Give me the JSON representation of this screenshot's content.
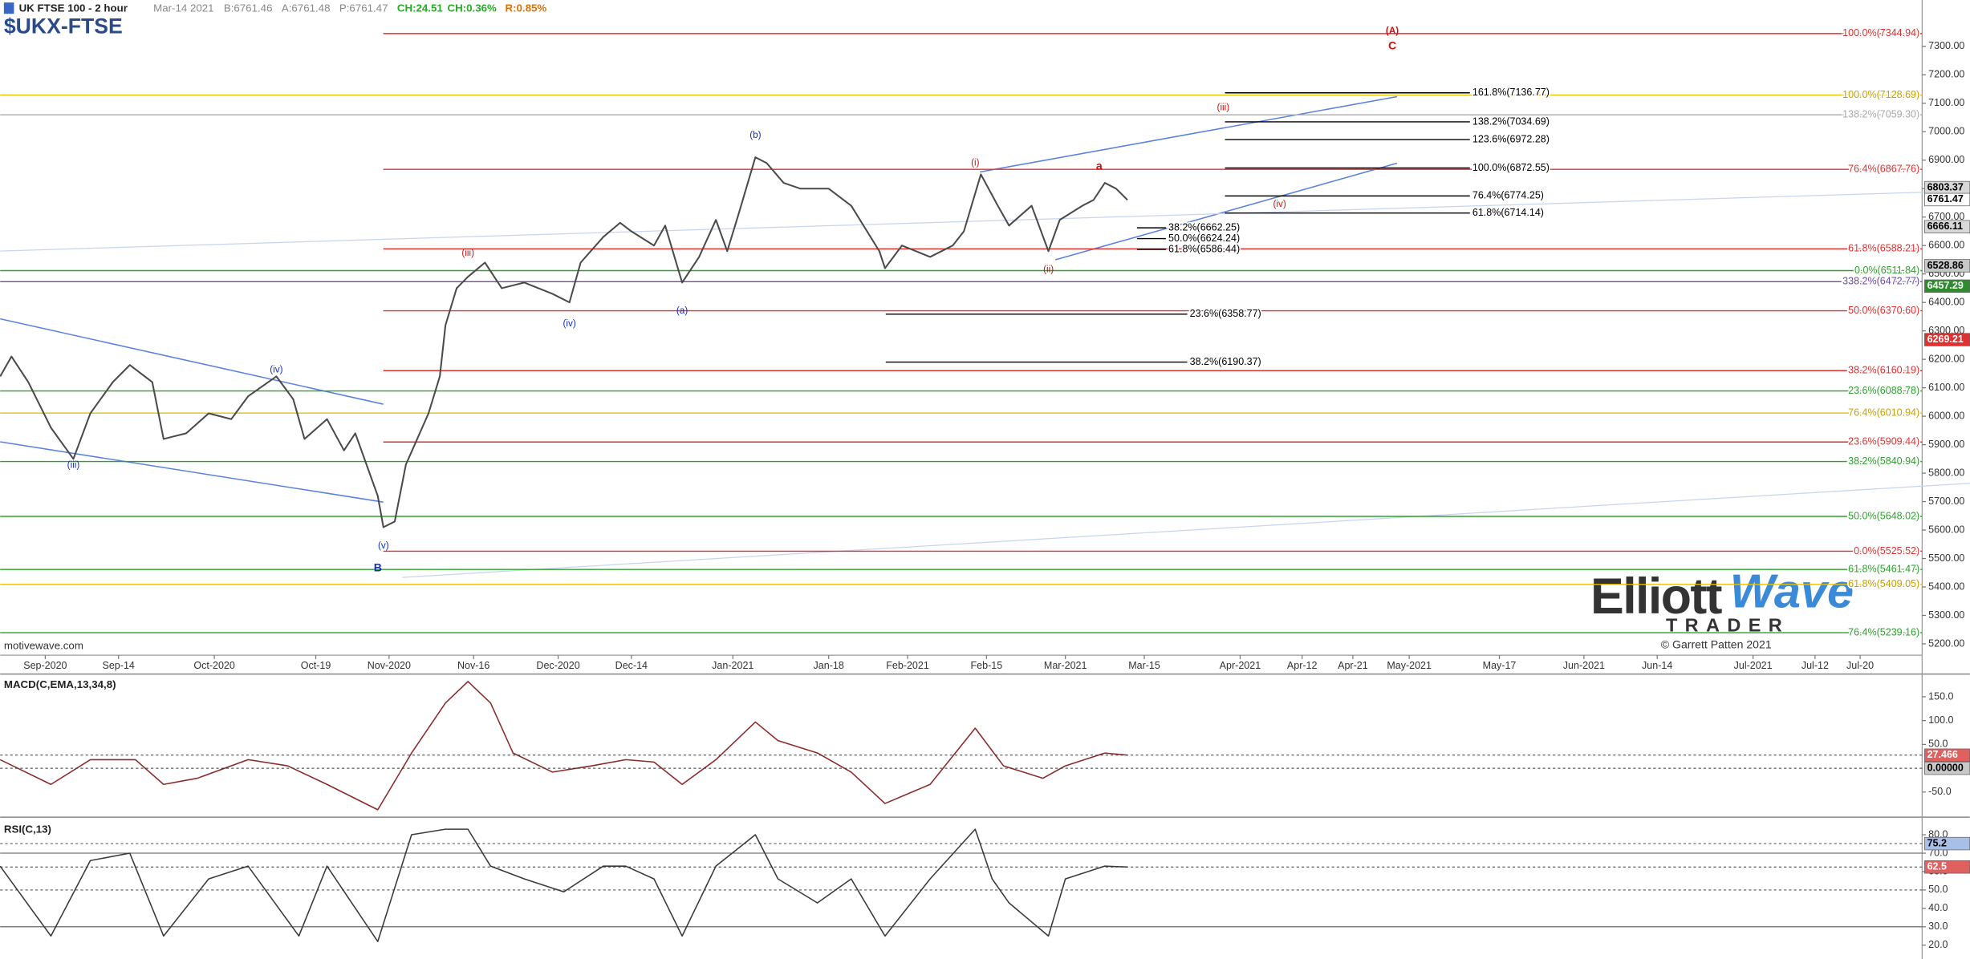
{
  "header": {
    "symbol_line": "UK FTSE 100 - 2 hour",
    "date": "Mar-14 2021",
    "bid": "B:6761.46",
    "ask": "A:6761.48",
    "price": "P:6761.47",
    "change": "CH:24.51",
    "change_pct": "CH:0.36%",
    "range": "R:0.85%",
    "ticker": "$UKX-FTSE",
    "source": "motivewave.com",
    "logo_word1": "Elliott",
    "logo_word2": "Wave",
    "logo_bottom": "TRADER",
    "credit": "© Garrett Patten 2021"
  },
  "chart_data": [
    {
      "type": "line",
      "xlim": [
        -8,
        333
      ],
      "ylim": [
        5160,
        7410
      ],
      "xticks": [
        {
          "value": 0,
          "label": "Sep-2020"
        },
        {
          "value": 13,
          "label": "Sep-14"
        },
        {
          "value": 30,
          "label": "Oct-2020"
        },
        {
          "value": 48,
          "label": "Oct-19"
        },
        {
          "value": 61,
          "label": "Nov-2020"
        },
        {
          "value": 76,
          "label": "Nov-16"
        },
        {
          "value": 91,
          "label": "Dec-2020"
        },
        {
          "value": 104,
          "label": "Dec-14"
        },
        {
          "value": 122,
          "label": "Jan-2021"
        },
        {
          "value": 139,
          "label": "Jan-18"
        },
        {
          "value": 153,
          "label": "Feb-2021"
        },
        {
          "value": 167,
          "label": "Feb-15"
        },
        {
          "value": 181,
          "label": "Mar-2021"
        },
        {
          "value": 195,
          "label": "Mar-15"
        },
        {
          "value": 212,
          "label": "Apr-2021"
        },
        {
          "value": 223,
          "label": "Apr-12"
        },
        {
          "value": 232,
          "label": "Apr-21"
        },
        {
          "value": 242,
          "label": "May-2021"
        },
        {
          "value": 258,
          "label": "May-17"
        },
        {
          "value": 273,
          "label": "Jun-2021"
        },
        {
          "value": 286,
          "label": "Jun-14"
        },
        {
          "value": 303,
          "label": "Jul-2021"
        },
        {
          "value": 314,
          "label": "Jul-12"
        },
        {
          "value": 322,
          "label": "Jul-20"
        }
      ],
      "yticks": [
        {
          "value": 5200,
          "label": "5200.00"
        },
        {
          "value": 5300,
          "label": "5300.00"
        },
        {
          "value": 5400,
          "label": "5400.00"
        },
        {
          "value": 5500,
          "label": "5500.00"
        },
        {
          "value": 5600,
          "label": "5600.00"
        },
        {
          "value": 5700,
          "label": "5700.00"
        },
        {
          "value": 5800,
          "label": "5800.00"
        },
        {
          "value": 5900,
          "label": "5900.00"
        },
        {
          "value": 6000,
          "label": "6000.00"
        },
        {
          "value": 6100,
          "label": "6100.00"
        },
        {
          "value": 6200,
          "label": "6200.00"
        },
        {
          "value": 6300,
          "label": "6300.00"
        },
        {
          "value": 6400,
          "label": "6400.00"
        },
        {
          "value": 6500,
          "label": "6500.00"
        },
        {
          "value": 6600,
          "label": "6600.00"
        },
        {
          "value": 6700,
          "label": "6700.00"
        },
        {
          "value": 6800,
          "label": "6800.00"
        },
        {
          "value": 6900,
          "label": "6900.00"
        },
        {
          "value": 7000,
          "label": "7000.00"
        },
        {
          "value": 7100,
          "label": "7100.00"
        },
        {
          "value": 7200,
          "label": "7200.00"
        },
        {
          "value": 7300,
          "label": "7300.00"
        }
      ],
      "x": [
        -8,
        -6,
        -3,
        1,
        5,
        8,
        12,
        15,
        19,
        21,
        25,
        29,
        33,
        36,
        41,
        44,
        46,
        50,
        53,
        55,
        59,
        60,
        62,
        64,
        68,
        70,
        71,
        73,
        75,
        78,
        81,
        85,
        90,
        93,
        95,
        99,
        102,
        104,
        108,
        110,
        113,
        116,
        119,
        121,
        123,
        126,
        128,
        131,
        134,
        139,
        143,
        148,
        149,
        152,
        157,
        161,
        163,
        166,
        169,
        171,
        175,
        178,
        180,
        184,
        186,
        188,
        190,
        192
      ],
      "series": [
        {
          "color": "#4a4a4a",
          "values": [
            6140,
            6210,
            6120,
            5960,
            5850,
            6010,
            6120,
            6180,
            6120,
            5920,
            5940,
            6010,
            5990,
            6070,
            6140,
            6060,
            5920,
            5990,
            5880,
            5940,
            5720,
            5610,
            5630,
            5830,
            6010,
            6140,
            6320,
            6450,
            6490,
            6540,
            6450,
            6470,
            6430,
            6400,
            6540,
            6630,
            6680,
            6650,
            6600,
            6670,
            6470,
            6560,
            6690,
            6580,
            6710,
            6910,
            6890,
            6820,
            6800,
            6800,
            6740,
            6580,
            6520,
            6600,
            6560,
            6600,
            6650,
            6850,
            6740,
            6670,
            6740,
            6580,
            6690,
            6740,
            6760,
            6820,
            6800,
            6760
          ]
        }
      ],
      "levels": [
        {
          "color": "#e03030",
          "lines": [
            {
              "value": 7344.94,
              "label": "100.0%(7344.94)"
            },
            {
              "value": 6867.76,
              "label": "76.4%(6867.76)"
            },
            {
              "value": 6588.21,
              "label": "61.8%(6588.21)"
            },
            {
              "value": 6370.6,
              "label": "50.0%(6370.60)"
            },
            {
              "value": 6160.19,
              "label": "38.2%(6160.19)"
            },
            {
              "value": 5909.44,
              "label": "23.6%(5909.44)"
            },
            {
              "value": 5525.52,
              "label": "0.0%(5525.52)"
            }
          ]
        },
        {
          "color": "#e8c000",
          "lines": [
            {
              "value": 7128.69,
              "label": "100.0%(7128.69)"
            },
            {
              "value": 6010.94,
              "label": "76.4%(6010.94)"
            },
            {
              "value": 5409.05,
              "label": "61.8%(5409.05)"
            }
          ]
        },
        {
          "color": "#a8a8a8",
          "lines": [
            {
              "value": 7059.3,
              "label": "138.2%(7059.30)"
            }
          ]
        },
        {
          "color": "#2ea02e",
          "lines": [
            {
              "value": 6511.84,
              "label": "0.0%(6511.84)"
            },
            {
              "value": 6088.78,
              "label": "23.6%(6088.78)"
            },
            {
              "value": 5840.94,
              "label": "38.2%(5840.94)"
            },
            {
              "value": 5648.02,
              "label": "50.0%(5648.02)"
            },
            {
              "value": 5461.47,
              "label": "61.8%(5461.47)"
            },
            {
              "value": 5239.16,
              "label": "76.4%(5239.16)"
            }
          ]
        },
        {
          "color": "#6a4aa8",
          "lines": [
            {
              "value": 6472.77,
              "label": "338.2%(6472.77)"
            }
          ]
        },
        {
          "color": "#000000",
          "lines": [
            {
              "value": 7136.77,
              "label": "161.8%(7136.77)"
            },
            {
              "value": 7034.69,
              "label": "138.2%(7034.69)"
            },
            {
              "value": 6972.28,
              "label": "123.6%(6972.28)"
            },
            {
              "value": 6872.55,
              "label": "100.0%(6872.55)"
            },
            {
              "value": 6774.25,
              "label": "76.4%(6774.25)"
            },
            {
              "value": 6714.14,
              "label": "61.8%(6714.14)"
            }
          ]
        },
        {
          "color": "#000000",
          "lines": [
            {
              "value": 6662.25,
              "label": "38.2%(6662.25)"
            },
            {
              "value": 6624.24,
              "label": "50.0%(6624.24)"
            },
            {
              "value": 6586.44,
              "label": "61.8%(6586.44)"
            }
          ]
        },
        {
          "color": "#000000",
          "lines": [
            {
              "value": 6358.77,
              "label": "23.6%(6358.77)"
            },
            {
              "value": 6190.37,
              "label": "38.2%(6190.37)"
            }
          ]
        }
      ],
      "price_markers": [
        {
          "value": 6803.37,
          "color": "#d8d8d8"
        },
        {
          "value": 6761.47,
          "color": "#ffffff"
        },
        {
          "value": 6666.11,
          "color": "#d8d8d8"
        },
        {
          "value": 6528.86,
          "color": "#c8c8c8"
        },
        {
          "value": 6457.29,
          "color": "#2e8b2e"
        },
        {
          "value": 6269.21,
          "color": "#e03030"
        }
      ],
      "annotations": [
        {
          "text": "(A)",
          "x": 239,
          "y": 7353,
          "color": "#d01010"
        },
        {
          "text": "C",
          "x": 239,
          "y": 7300,
          "color": "#d01010"
        },
        {
          "text": "B",
          "x": 59,
          "y": 5465,
          "color": "#1030c0"
        },
        {
          "text": "(v)",
          "x": 60,
          "y": 5544,
          "color": "#1030c0"
        },
        {
          "text": "(iii)",
          "x": 5,
          "y": 5827,
          "color": "#1030c0"
        },
        {
          "text": "(iv)",
          "x": 41,
          "y": 6162,
          "color": "#1030c0"
        },
        {
          "text": "(iii)",
          "x": 75,
          "y": 6572,
          "color": "#d01010"
        },
        {
          "text": "(iv)",
          "x": 93,
          "y": 6325,
          "color": "#1030c0"
        },
        {
          "text": "(a)",
          "x": 113,
          "y": 6370,
          "color": "#1030c0"
        },
        {
          "text": "(b)",
          "x": 126,
          "y": 6987,
          "color": "#1030c0"
        },
        {
          "text": "(i)",
          "x": 165,
          "y": 6890,
          "color": "#d01010"
        },
        {
          "text": "(ii)",
          "x": 178,
          "y": 6515,
          "color": "#d01010"
        },
        {
          "text": "a",
          "x": 187,
          "y": 6877,
          "color": "#d01010"
        },
        {
          "text": "(iii)",
          "x": 209,
          "y": 7084,
          "color": "#d01010"
        },
        {
          "text": "(iv)",
          "x": 219,
          "y": 6744,
          "color": "#d01010"
        }
      ]
    },
    {
      "type": "line",
      "title": "MACD(C,EMA,13,34,8)",
      "xlim": [
        -8,
        333
      ],
      "ylim": [
        -100,
        195
      ],
      "yticks": [
        {
          "value": 150,
          "label": "150.0"
        },
        {
          "value": 100,
          "label": "100.0"
        },
        {
          "value": 50,
          "label": "50.0"
        },
        {
          "value": -50,
          "label": "-50.0"
        }
      ],
      "x": [
        -8,
        1,
        8,
        16,
        21,
        27,
        36,
        43,
        50,
        59,
        65,
        71,
        75,
        79,
        83,
        90,
        97,
        103,
        108,
        113,
        119,
        126,
        130,
        137,
        143,
        149,
        157,
        165,
        170,
        177,
        181,
        188,
        192
      ],
      "series": [
        {
          "color": "#8b2a2a",
          "values": [
            18,
            -34,
            18,
            18,
            -34,
            -21,
            18,
            5,
            -34,
            -87,
            32,
            137,
            182,
            137,
            32,
            -8,
            5,
            18,
            13,
            -34,
            18,
            97,
            58,
            32,
            -8,
            -74,
            -34,
            84,
            5,
            -21,
            5,
            32,
            27.466
          ]
        }
      ],
      "price_markers": [
        {
          "value": 27.466,
          "color": "#e06060"
        },
        {
          "value": 0,
          "label": "0.00000",
          "color": "#c8c8c8"
        }
      ]
    },
    {
      "type": "line",
      "title": "RSI(C,13)",
      "xlim": [
        -8,
        333
      ],
      "ylim": [
        12.5,
        88.2
      ],
      "yticks": [
        {
          "value": 80,
          "label": "80.0"
        },
        {
          "value": 70,
          "label": "70.0"
        },
        {
          "value": 60,
          "label": "60.0"
        },
        {
          "value": 50,
          "label": "50.0"
        },
        {
          "value": 40,
          "label": "40.0"
        },
        {
          "value": 30,
          "label": "30.0"
        },
        {
          "value": 20,
          "label": "20.0"
        }
      ],
      "guides": [
        70,
        50,
        30
      ],
      "x": [
        -8,
        1,
        8,
        15,
        21,
        29,
        36,
        45,
        50,
        59,
        65,
        71,
        75,
        79,
        85,
        92,
        99,
        103,
        108,
        113,
        119,
        126,
        130,
        137,
        143,
        149,
        157,
        165,
        168,
        171,
        178,
        181,
        188,
        192
      ],
      "series": [
        {
          "color": "#3a3a3a",
          "values": [
            63,
            25,
            66,
            70,
            25,
            56,
            63,
            25,
            63,
            22,
            80,
            83,
            83,
            63,
            56,
            49,
            63,
            63,
            56,
            25,
            63,
            80,
            56,
            43,
            56,
            25,
            56,
            83,
            56,
            43,
            25,
            56,
            63,
            62.5
          ]
        }
      ],
      "price_markers": [
        {
          "value": 75.2,
          "color": "#a8c0e8"
        },
        {
          "value": 62.5,
          "color": "#e06060"
        }
      ]
    }
  ]
}
